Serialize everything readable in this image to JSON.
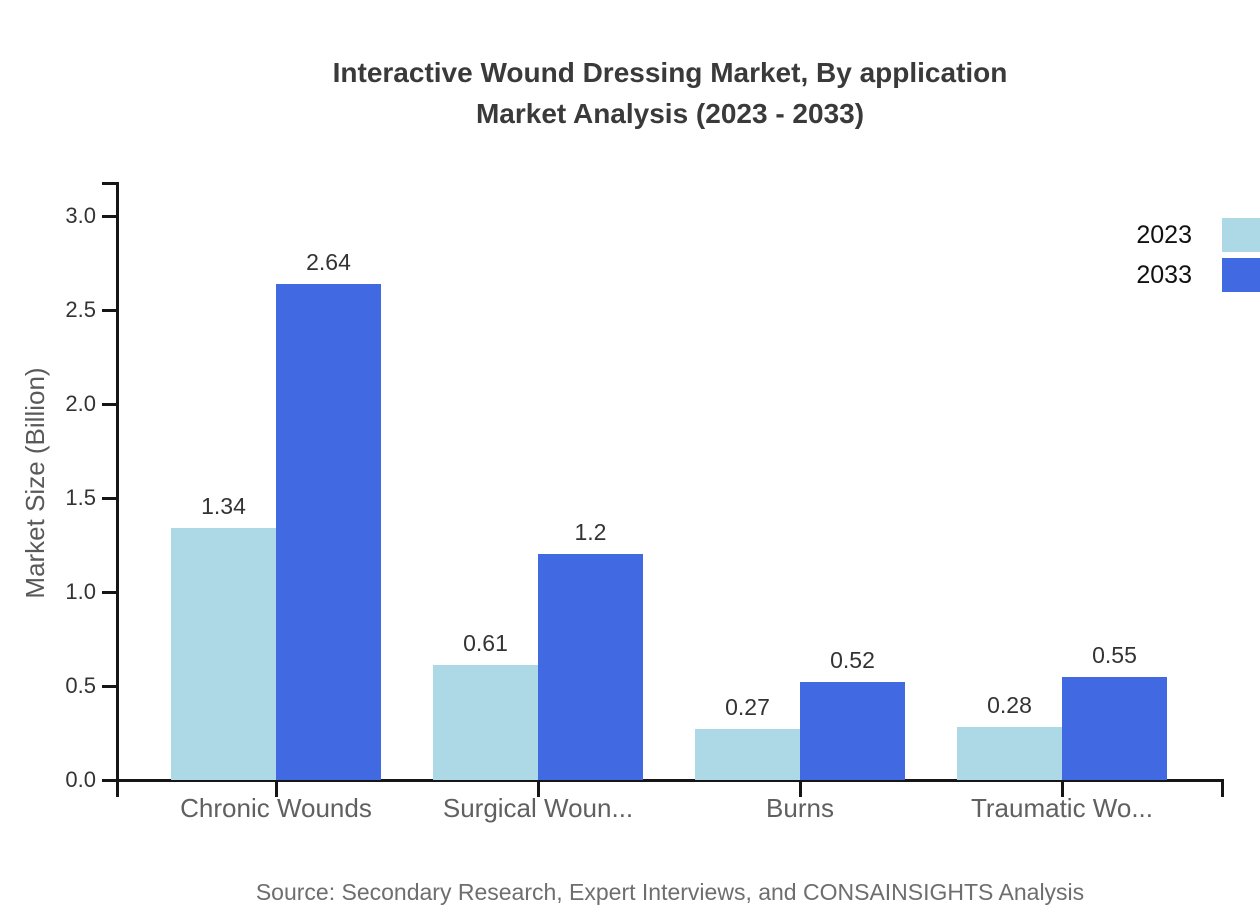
{
  "title": {
    "line1": "Interactive Wound Dressing Market, By application",
    "line2": "Market Analysis (2023 - 2033)"
  },
  "legend": [
    {
      "label": "2023",
      "color": "#ADD8E6"
    },
    {
      "label": "2033",
      "color": "#4169E1"
    }
  ],
  "source": "Source: Secondary Research, Expert Interviews, and CONSAINSIGHTS Analysis",
  "chart_data": {
    "type": "bar",
    "categories": [
      "Chronic Wounds",
      "Surgical Woun...",
      "Burns",
      "Traumatic Wo..."
    ],
    "series": [
      {
        "name": "2023",
        "color": "#ADD8E6",
        "values": [
          1.34,
          0.61,
          0.27,
          0.28
        ]
      },
      {
        "name": "2033",
        "color": "#4169E1",
        "values": [
          2.64,
          1.2,
          0.52,
          0.55
        ]
      }
    ],
    "title": "Interactive Wound Dressing Market, By application Market Analysis (2023 - 2033)",
    "xlabel": "",
    "ylabel": "Market Size (Billion)",
    "yticks": [
      0.0,
      0.5,
      1.0,
      1.5,
      2.0,
      2.5,
      3.0
    ],
    "ylim": [
      0,
      3.2
    ],
    "grid": false,
    "legend_position": "top-right",
    "value_labels": true,
    "axis_color": "#161616"
  }
}
